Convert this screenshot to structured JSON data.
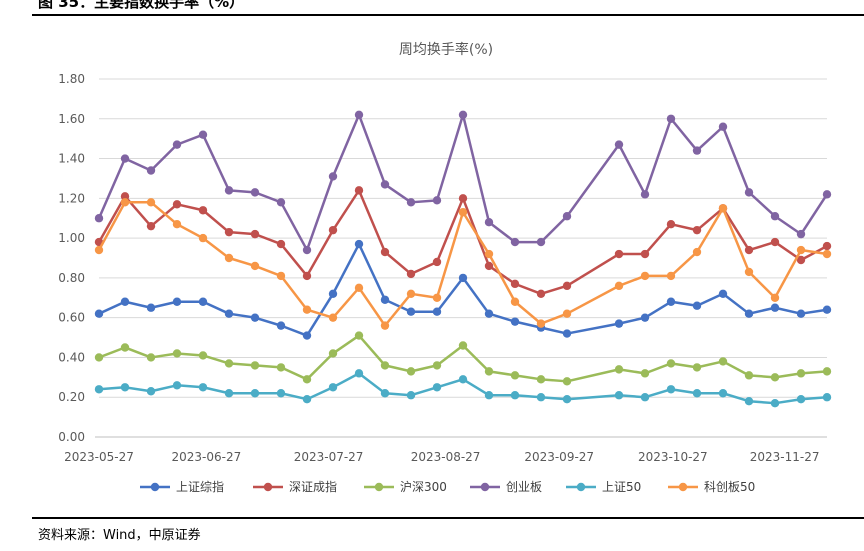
{
  "header": {
    "caption": "图 35：主要指数换手率（%）"
  },
  "footer": {
    "source": "资料来源：Wind，中原证券"
  },
  "chart_data": {
    "type": "line",
    "title": "周均换手率(%)",
    "ylim": [
      0,
      1.8
    ],
    "yticks": [
      "0.00",
      "0.20",
      "0.40",
      "0.60",
      "0.80",
      "1.00",
      "1.20",
      "1.40",
      "1.60",
      "1.80"
    ],
    "x_labels": [
      "2023-05-27",
      "2023-06-27",
      "2023-07-27",
      "2023-08-27",
      "2023-09-27",
      "2023-10-27",
      "2023-11-27"
    ],
    "x_label_positions": [
      0,
      4.13,
      8.83,
      13.33,
      17.7,
      22.07,
      26.37
    ],
    "x": [
      0,
      1,
      2,
      3,
      4,
      5,
      6,
      7,
      8,
      9,
      10,
      11,
      12,
      13,
      14,
      15,
      16,
      17,
      18,
      20,
      21,
      22,
      23,
      24,
      25,
      26,
      27,
      28
    ],
    "series": [
      {
        "name": "上证综指",
        "color": "#4472C4",
        "values": [
          0.62,
          0.68,
          0.65,
          0.68,
          0.68,
          0.62,
          0.6,
          0.56,
          0.51,
          0.72,
          0.97,
          0.69,
          0.63,
          0.63,
          0.8,
          0.62,
          0.58,
          0.55,
          0.52,
          0.57,
          0.6,
          0.68,
          0.66,
          0.72,
          0.62,
          0.65,
          0.62,
          0.64
        ]
      },
      {
        "name": "深证成指",
        "color": "#C0504D",
        "values": [
          0.98,
          1.21,
          1.06,
          1.17,
          1.14,
          1.03,
          1.02,
          0.97,
          0.81,
          1.04,
          1.24,
          0.93,
          0.82,
          0.88,
          1.2,
          0.86,
          0.77,
          0.72,
          0.76,
          0.92,
          0.92,
          1.07,
          1.04,
          1.15,
          0.94,
          0.98,
          0.89,
          0.96
        ]
      },
      {
        "name": "沪深300",
        "color": "#9BBB59",
        "values": [
          0.4,
          0.45,
          0.4,
          0.42,
          0.41,
          0.37,
          0.36,
          0.35,
          0.29,
          0.42,
          0.51,
          0.36,
          0.33,
          0.36,
          0.46,
          0.33,
          0.31,
          0.29,
          0.28,
          0.34,
          0.32,
          0.37,
          0.35,
          0.38,
          0.31,
          0.3,
          0.32,
          0.33
        ]
      },
      {
        "name": "创业板",
        "color": "#8064A2",
        "values": [
          1.1,
          1.4,
          1.34,
          1.47,
          1.52,
          1.24,
          1.23,
          1.18,
          0.94,
          1.31,
          1.62,
          1.27,
          1.18,
          1.19,
          1.62,
          1.08,
          0.98,
          0.98,
          1.11,
          1.47,
          1.22,
          1.6,
          1.44,
          1.56,
          1.23,
          1.11,
          1.02,
          1.22
        ]
      },
      {
        "name": "上证50",
        "color": "#4BACC6",
        "values": [
          0.24,
          0.25,
          0.23,
          0.26,
          0.25,
          0.22,
          0.22,
          0.22,
          0.19,
          0.25,
          0.32,
          0.22,
          0.21,
          0.25,
          0.29,
          0.21,
          0.21,
          0.2,
          0.19,
          0.21,
          0.2,
          0.24,
          0.22,
          0.22,
          0.18,
          0.17,
          0.19,
          0.2
        ]
      },
      {
        "name": "科创板50",
        "color": "#F79646",
        "values": [
          0.94,
          1.18,
          1.18,
          1.07,
          1.0,
          0.9,
          0.86,
          0.81,
          0.64,
          0.6,
          0.75,
          0.56,
          0.72,
          0.7,
          1.13,
          0.92,
          0.68,
          0.57,
          0.62,
          0.76,
          0.81,
          0.81,
          0.93,
          1.15,
          0.83,
          0.7,
          0.94,
          0.92
        ]
      }
    ]
  }
}
